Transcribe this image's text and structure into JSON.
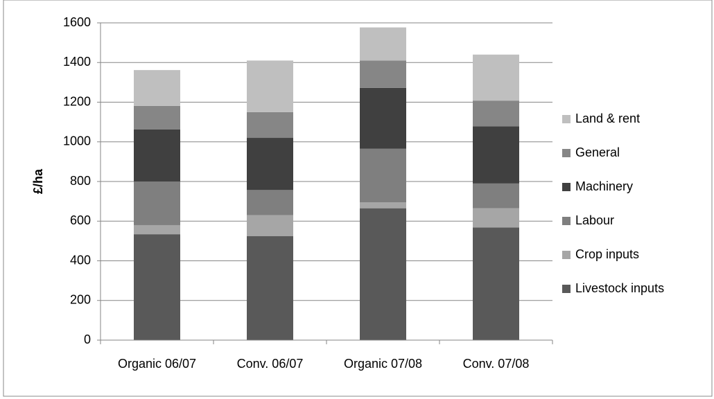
{
  "chart_data": {
    "type": "stacked-bar",
    "y_label": "£/ha",
    "categories": [
      "Organic 06/07",
      "Conv. 06/07",
      "Organic 07/08",
      "Conv. 07/08"
    ],
    "series": [
      {
        "name": "Livestock inputs",
        "color": "#595959",
        "values": [
          534,
          525,
          665,
          568
        ]
      },
      {
        "name": "Crop inputs",
        "color": "#a6a6a6",
        "values": [
          46,
          105,
          30,
          97
        ]
      },
      {
        "name": "Labour",
        "color": "#7f7f7f",
        "values": [
          220,
          127,
          270,
          125
        ]
      },
      {
        "name": "Machinery",
        "color": "#404040",
        "values": [
          262,
          263,
          307,
          288
        ]
      },
      {
        "name": "General",
        "color": "#868686",
        "values": [
          119,
          130,
          138,
          130
        ]
      },
      {
        "name": "Land & rent",
        "color": "#bfbfbf",
        "values": [
          181,
          260,
          167,
          232
        ]
      }
    ],
    "ylim": [
      0,
      1600
    ],
    "yticks": [
      0,
      200,
      400,
      600,
      800,
      1000,
      1200,
      1400,
      1600
    ],
    "grid": true,
    "legend": "right"
  }
}
